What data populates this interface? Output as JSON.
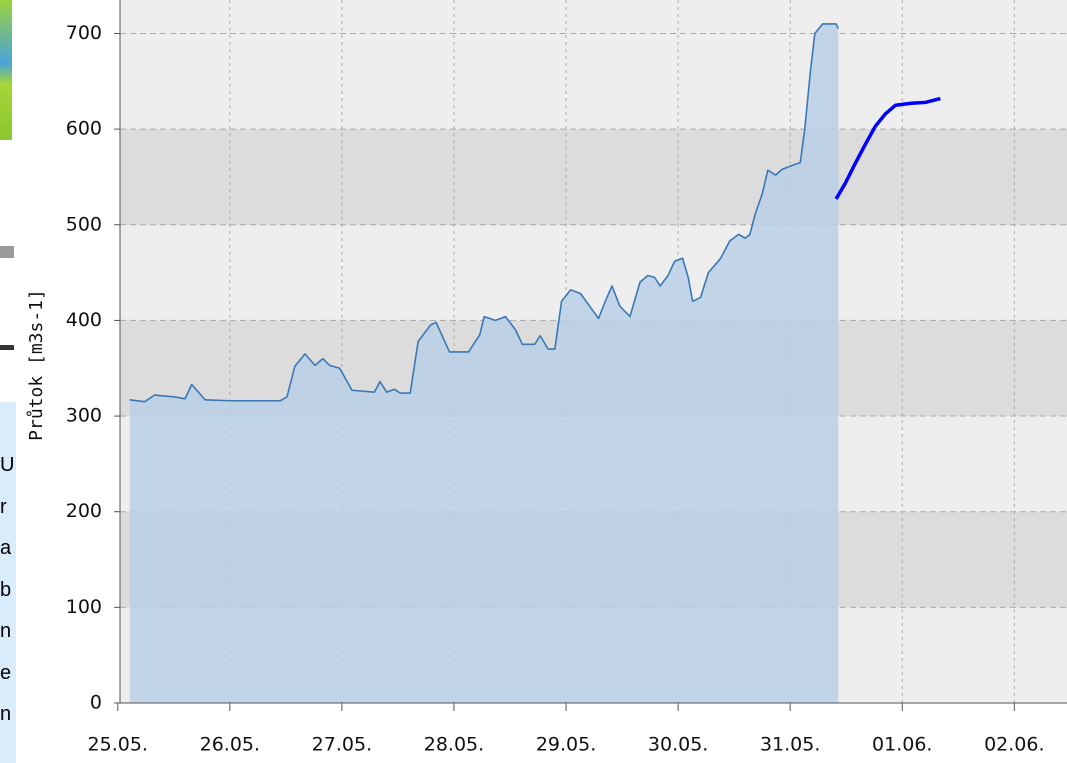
{
  "sidebar": {
    "letters": [
      "U",
      "r",
      "a",
      "b",
      "n",
      "e",
      "n"
    ]
  },
  "chart_data": {
    "type": "area",
    "ylabel": "Průtok [m3s-1]",
    "ylim": [
      0,
      735
    ],
    "yticks": [
      0,
      100,
      200,
      300,
      400,
      500,
      600,
      700
    ],
    "xlim": [
      0.02,
      8.47
    ],
    "xticks": [
      {
        "value": 0,
        "label": "25.05."
      },
      {
        "value": 1,
        "label": "26.05."
      },
      {
        "value": 2,
        "label": "27.05."
      },
      {
        "value": 3,
        "label": "28.05."
      },
      {
        "value": 4,
        "label": "29.05."
      },
      {
        "value": 5,
        "label": "30.05."
      },
      {
        "value": 6,
        "label": "31.05."
      },
      {
        "value": 7,
        "label": "01.06."
      },
      {
        "value": 8,
        "label": "02.06."
      }
    ],
    "grid": true,
    "bands": true,
    "series": [
      {
        "color": "#3a78b5",
        "fill": "#b8cfe6",
        "area": true,
        "x": [
          0.107,
          0.24,
          0.33,
          0.51,
          0.6,
          0.66,
          0.78,
          1.0,
          1.45,
          1.51,
          1.58,
          1.67,
          1.76,
          1.83,
          1.89,
          1.98,
          2.09,
          2.29,
          2.34,
          2.4,
          2.47,
          2.52,
          2.61,
          2.68,
          2.79,
          2.84,
          2.96,
          3.13,
          3.23,
          3.27,
          3.37,
          3.46,
          3.55,
          3.61,
          3.72,
          3.77,
          3.84,
          3.9,
          3.96,
          4.04,
          4.13,
          4.21,
          4.29,
          4.35,
          4.41,
          4.48,
          4.57,
          4.66,
          4.73,
          4.79,
          4.84,
          4.91,
          4.97,
          5.04,
          5.09,
          5.13,
          5.2,
          5.27,
          5.38,
          5.46,
          5.54,
          5.6,
          5.64,
          5.69,
          5.75,
          5.8,
          5.87,
          5.93,
          6.04,
          6.09,
          6.13,
          6.18,
          6.22,
          6.29,
          6.41,
          6.43
        ],
        "values": [
          317,
          315,
          322,
          320,
          318,
          333,
          317,
          316,
          316,
          320,
          352,
          365,
          353,
          360,
          353,
          350,
          327,
          325,
          336,
          325,
          328,
          324,
          324,
          378,
          395,
          398,
          367,
          367,
          385,
          404,
          400,
          404,
          390,
          375,
          375,
          384,
          370,
          370,
          420,
          432,
          428,
          415,
          402,
          420,
          436,
          415,
          404,
          440,
          447,
          445,
          436,
          447,
          462,
          465,
          445,
          420,
          424,
          450,
          465,
          483,
          490,
          486,
          490,
          512,
          532,
          557,
          552,
          558,
          563,
          565,
          600,
          660,
          700,
          710,
          710,
          705
        ]
      },
      {
        "color": "#0000ff",
        "area": false,
        "x": [
          6.41,
          6.49,
          6.58,
          6.67,
          6.76,
          6.85,
          6.94,
          7.08,
          7.21,
          7.34
        ],
        "values": [
          527,
          543,
          564,
          584,
          603,
          616,
          625,
          627,
          628,
          632
        ]
      }
    ]
  }
}
